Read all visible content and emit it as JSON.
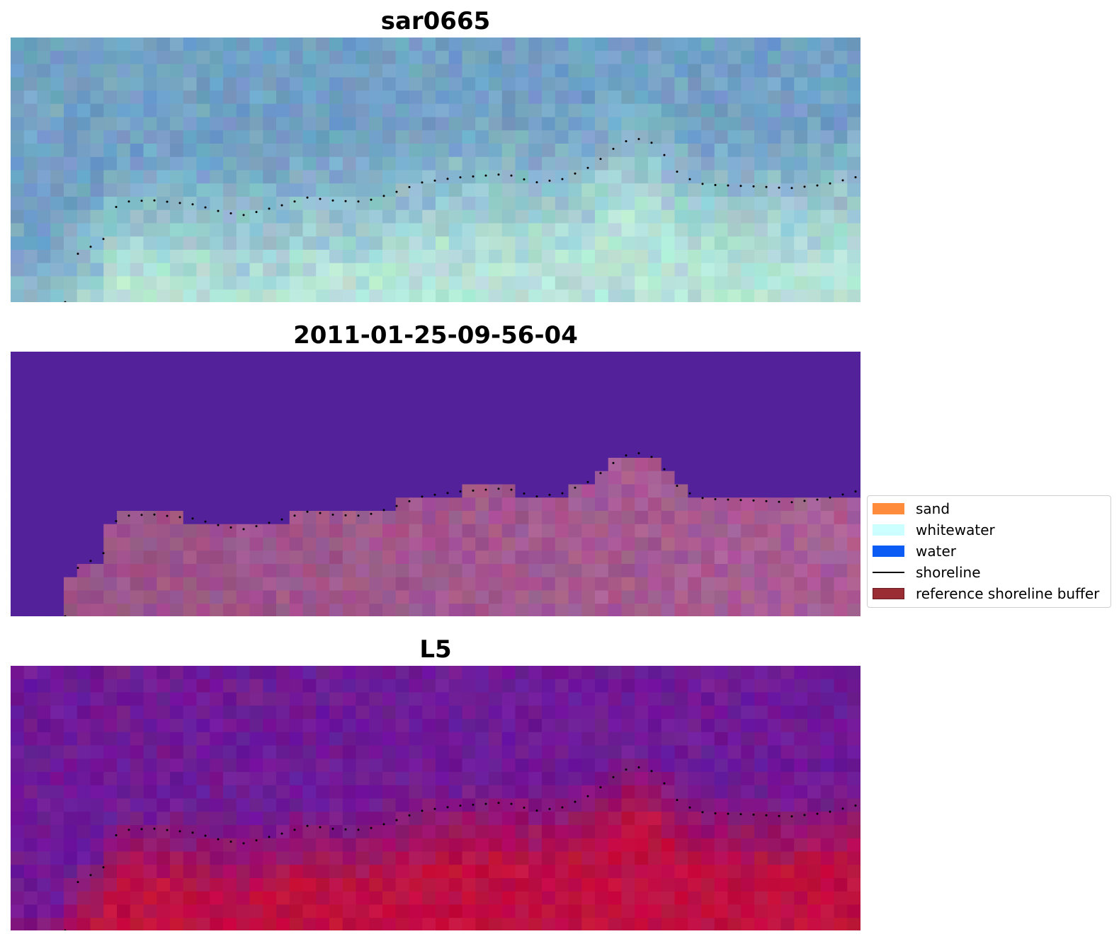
{
  "panels": [
    {
      "title": "sar0665",
      "style": "rgb"
    },
    {
      "title": "2011-01-25-09-56-04",
      "style": "classified"
    },
    {
      "title": "L5",
      "style": "index"
    }
  ],
  "legend": {
    "items": [
      {
        "label": "sand",
        "color": "#ff8c3c",
        "kind": "patch"
      },
      {
        "label": "whitewater",
        "color": "#ccffff",
        "kind": "patch"
      },
      {
        "label": "water",
        "color": "#0a5cf5",
        "kind": "patch"
      },
      {
        "label": "shoreline",
        "color": "#000000",
        "kind": "line"
      },
      {
        "label": "reference shoreline buffer",
        "color": "#9a2c33",
        "kind": "patch"
      }
    ]
  },
  "colors": {
    "rgb_water": "#6f9ec4",
    "rgb_sand": "#b8e6d8",
    "classified_water": "#53229a",
    "classified_land": "#9b5087",
    "index_water": "#6c1a99",
    "index_land": "#c20f3e",
    "shoreline_dots": "#000000"
  }
}
